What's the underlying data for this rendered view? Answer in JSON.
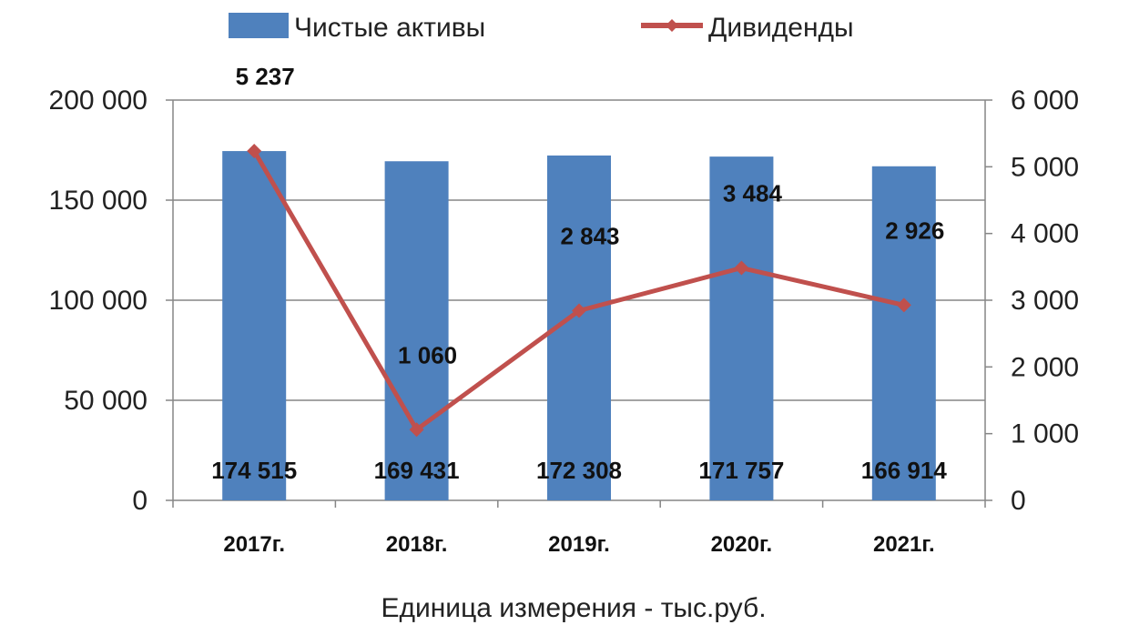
{
  "chart_data": {
    "type": "bar",
    "categories": [
      "2017г.",
      "2018г.",
      "2019г.",
      "2020г.",
      "2021г."
    ],
    "series": [
      {
        "name": "Чистые активы",
        "kind": "bar",
        "axis": "left",
        "color": "#4F81BD",
        "values": [
          174515,
          169431,
          172308,
          171757,
          166914
        ],
        "labels": [
          "174 515",
          "169 431",
          "172 308",
          "171 757",
          "166 914"
        ]
      },
      {
        "name": "Дивиденды",
        "kind": "line",
        "axis": "right",
        "color": "#C0504D",
        "marker": "diamond",
        "values": [
          5237,
          1060,
          2843,
          3484,
          2926
        ],
        "labels": [
          "5 237",
          "1 060",
          "2 843",
          "3 484",
          "2 926"
        ]
      }
    ],
    "y_left": {
      "ylim": [
        0,
        200000
      ],
      "ticks": [
        "0",
        "50 000",
        "100 000",
        "150 000",
        "200 000"
      ]
    },
    "y_right": {
      "ylim": [
        0,
        6000
      ],
      "ticks": [
        "0",
        "1 000",
        "2 000",
        "3 000",
        "4 000",
        "5 000",
        "6 000"
      ]
    },
    "grid": "horizontal",
    "legend_position": "top",
    "note": "Единица измерения - тыс.руб."
  }
}
